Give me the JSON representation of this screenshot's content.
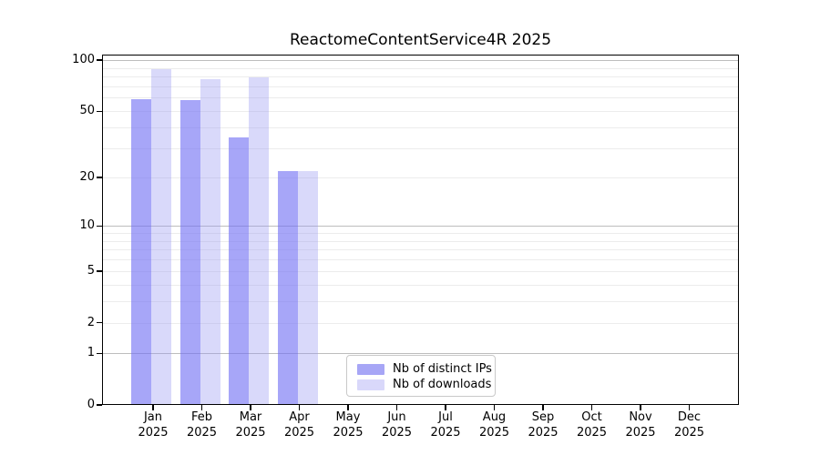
{
  "title": "ReactomeContentService4R 2025",
  "chart_data": {
    "type": "bar",
    "title": "ReactomeContentService4R 2025",
    "categories": [
      "Jan",
      "Feb",
      "Mar",
      "Apr",
      "May",
      "Jun",
      "Jul",
      "Aug",
      "Sep",
      "Oct",
      "Nov",
      "Dec"
    ],
    "category_year": "2025",
    "series": [
      {
        "name": "Nb of distinct IPs",
        "color": "#a7a6f6",
        "values": [
          59,
          58,
          35,
          22,
          null,
          null,
          null,
          null,
          null,
          null,
          null,
          null
        ]
      },
      {
        "name": "Nb of downloads",
        "color": "#d9d8fa",
        "values": [
          88,
          77,
          79,
          22,
          null,
          null,
          null,
          null,
          null,
          null,
          null,
          null
        ]
      }
    ],
    "y_scale": "log1p",
    "y_ticks": [
      0,
      1,
      2,
      5,
      10,
      20,
      50,
      100
    ],
    "ylim": [
      0,
      107
    ],
    "grid": "horizontal",
    "gridlines": {
      "major": [
        1,
        10,
        100
      ],
      "minor": [
        2,
        3,
        4,
        5,
        6,
        7,
        8,
        9,
        20,
        30,
        40,
        50,
        60,
        70,
        80,
        90
      ]
    },
    "legend_position": "inside-bottom-center",
    "xlabel": "",
    "ylabel": ""
  },
  "colors": {
    "bar_distinct_ips": "#a7a6f6",
    "bar_downloads": "#d9d8fa",
    "grid_major": "#bdbdbd",
    "grid_minor": "#ececec",
    "axis": "#000000",
    "legend_border": "#c9c9c9",
    "background": "#ffffff"
  }
}
